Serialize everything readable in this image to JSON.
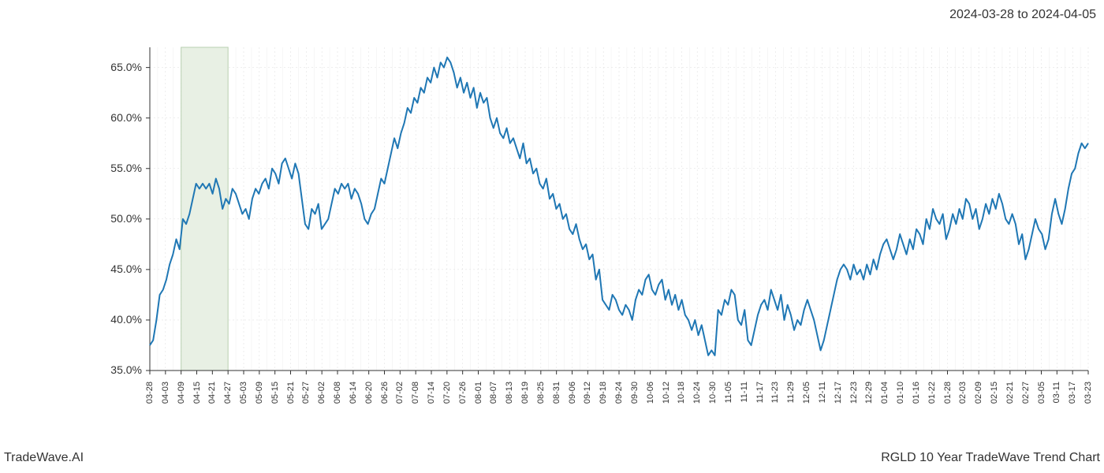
{
  "header": {
    "date_range": "2024-03-28 to 2024-04-05"
  },
  "footer": {
    "left": "TradeWave.AI",
    "right": "RGLD 10 Year TradeWave Trend Chart"
  },
  "chart": {
    "type": "line",
    "background_color": "#ffffff",
    "line_color": "#1f77b4",
    "line_width": 2,
    "grid_color": "#dddddd",
    "grid_minor_color": "#eeeeee",
    "axis_color": "#333333",
    "highlight_band": {
      "start_index": 2,
      "end_index": 5,
      "fill_color": "#e8f0e4",
      "stroke_color": "#b8d0b0"
    },
    "ylim": [
      35.0,
      67.0
    ],
    "y_ticks": [
      35.0,
      40.0,
      45.0,
      50.0,
      55.0,
      60.0,
      65.0
    ],
    "y_tick_labels": [
      "35.0%",
      "40.0%",
      "45.0%",
      "50.0%",
      "55.0%",
      "60.0%",
      "65.0%"
    ],
    "x_labels": [
      "03-28",
      "04-03",
      "04-09",
      "04-15",
      "04-21",
      "04-27",
      "05-03",
      "05-09",
      "05-15",
      "05-21",
      "05-27",
      "06-02",
      "06-08",
      "06-14",
      "06-20",
      "06-26",
      "07-02",
      "07-08",
      "07-14",
      "07-20",
      "07-26",
      "08-01",
      "08-07",
      "08-13",
      "08-19",
      "08-25",
      "08-31",
      "09-06",
      "09-12",
      "09-18",
      "09-24",
      "09-30",
      "10-06",
      "10-12",
      "10-18",
      "10-24",
      "10-30",
      "11-05",
      "11-11",
      "11-17",
      "11-23",
      "11-29",
      "12-05",
      "12-11",
      "12-17",
      "12-23",
      "12-29",
      "01-04",
      "01-10",
      "01-16",
      "01-22",
      "01-28",
      "02-03",
      "02-09",
      "02-15",
      "02-21",
      "02-27",
      "03-05",
      "03-11",
      "03-17",
      "03-23"
    ],
    "values": [
      37.5,
      38.0,
      40.0,
      42.5,
      43.0,
      44.0,
      45.5,
      46.5,
      48.0,
      47.0,
      50.0,
      49.5,
      50.5,
      52.0,
      53.5,
      53.0,
      53.5,
      53.0,
      53.5,
      52.5,
      54.0,
      53.0,
      51.0,
      52.0,
      51.5,
      53.0,
      52.5,
      51.5,
      50.5,
      51.0,
      50.0,
      52.0,
      53.0,
      52.5,
      53.5,
      54.0,
      53.0,
      55.0,
      54.5,
      53.5,
      55.5,
      56.0,
      55.0,
      54.0,
      55.5,
      54.5,
      52.0,
      49.5,
      49.0,
      51.0,
      50.5,
      51.5,
      49.0,
      49.5,
      50.0,
      51.5,
      53.0,
      52.5,
      53.5,
      53.0,
      53.5,
      52.0,
      53.0,
      52.5,
      51.5,
      50.0,
      49.5,
      50.5,
      51.0,
      52.5,
      54.0,
      53.5,
      55.0,
      56.5,
      58.0,
      57.0,
      58.5,
      59.5,
      61.0,
      60.5,
      62.0,
      61.5,
      63.0,
      62.5,
      64.0,
      63.5,
      65.0,
      64.0,
      65.5,
      65.0,
      66.0,
      65.5,
      64.5,
      63.0,
      64.0,
      62.5,
      63.5,
      62.0,
      63.0,
      61.0,
      62.5,
      61.5,
      62.0,
      60.0,
      59.0,
      60.0,
      58.5,
      58.0,
      59.0,
      57.5,
      58.0,
      57.0,
      56.0,
      57.5,
      55.5,
      56.0,
      54.5,
      55.0,
      53.5,
      53.0,
      54.0,
      52.0,
      52.5,
      51.0,
      51.5,
      50.0,
      50.5,
      49.0,
      48.5,
      49.5,
      48.0,
      47.0,
      47.5,
      46.0,
      46.5,
      44.0,
      45.0,
      42.0,
      41.5,
      41.0,
      42.5,
      42.0,
      41.0,
      40.5,
      41.5,
      41.0,
      40.0,
      42.0,
      43.0,
      42.5,
      44.0,
      44.5,
      43.0,
      42.5,
      43.5,
      44.0,
      42.0,
      43.0,
      41.5,
      42.5,
      41.0,
      42.0,
      40.5,
      40.0,
      39.0,
      40.0,
      38.5,
      39.5,
      38.0,
      36.5,
      37.0,
      36.5,
      41.0,
      40.5,
      42.0,
      41.5,
      43.0,
      42.5,
      40.0,
      39.5,
      41.0,
      38.0,
      37.5,
      39.0,
      40.5,
      41.5,
      42.0,
      41.0,
      43.0,
      42.0,
      41.0,
      42.5,
      40.0,
      41.5,
      40.5,
      39.0,
      40.0,
      39.5,
      41.0,
      42.0,
      41.0,
      40.0,
      38.5,
      37.0,
      38.0,
      39.5,
      41.0,
      42.5,
      44.0,
      45.0,
      45.5,
      45.0,
      44.0,
      45.5,
      44.5,
      45.0,
      44.0,
      45.5,
      44.5,
      46.0,
      45.0,
      46.5,
      47.5,
      48.0,
      47.0,
      46.0,
      47.0,
      48.5,
      47.5,
      46.5,
      48.0,
      47.0,
      49.0,
      48.5,
      47.5,
      50.0,
      49.0,
      51.0,
      50.0,
      49.5,
      50.5,
      48.0,
      49.0,
      50.5,
      49.5,
      51.0,
      50.0,
      52.0,
      51.5,
      50.0,
      51.0,
      49.0,
      50.0,
      51.5,
      50.5,
      52.0,
      51.0,
      52.5,
      51.5,
      50.0,
      49.5,
      50.5,
      49.5,
      47.5,
      48.5,
      46.0,
      47.0,
      48.5,
      50.0,
      49.0,
      48.5,
      47.0,
      48.0,
      50.5,
      52.0,
      50.5,
      49.5,
      51.0,
      53.0,
      54.5,
      55.0,
      56.5,
      57.5,
      57.0,
      57.5
    ]
  }
}
